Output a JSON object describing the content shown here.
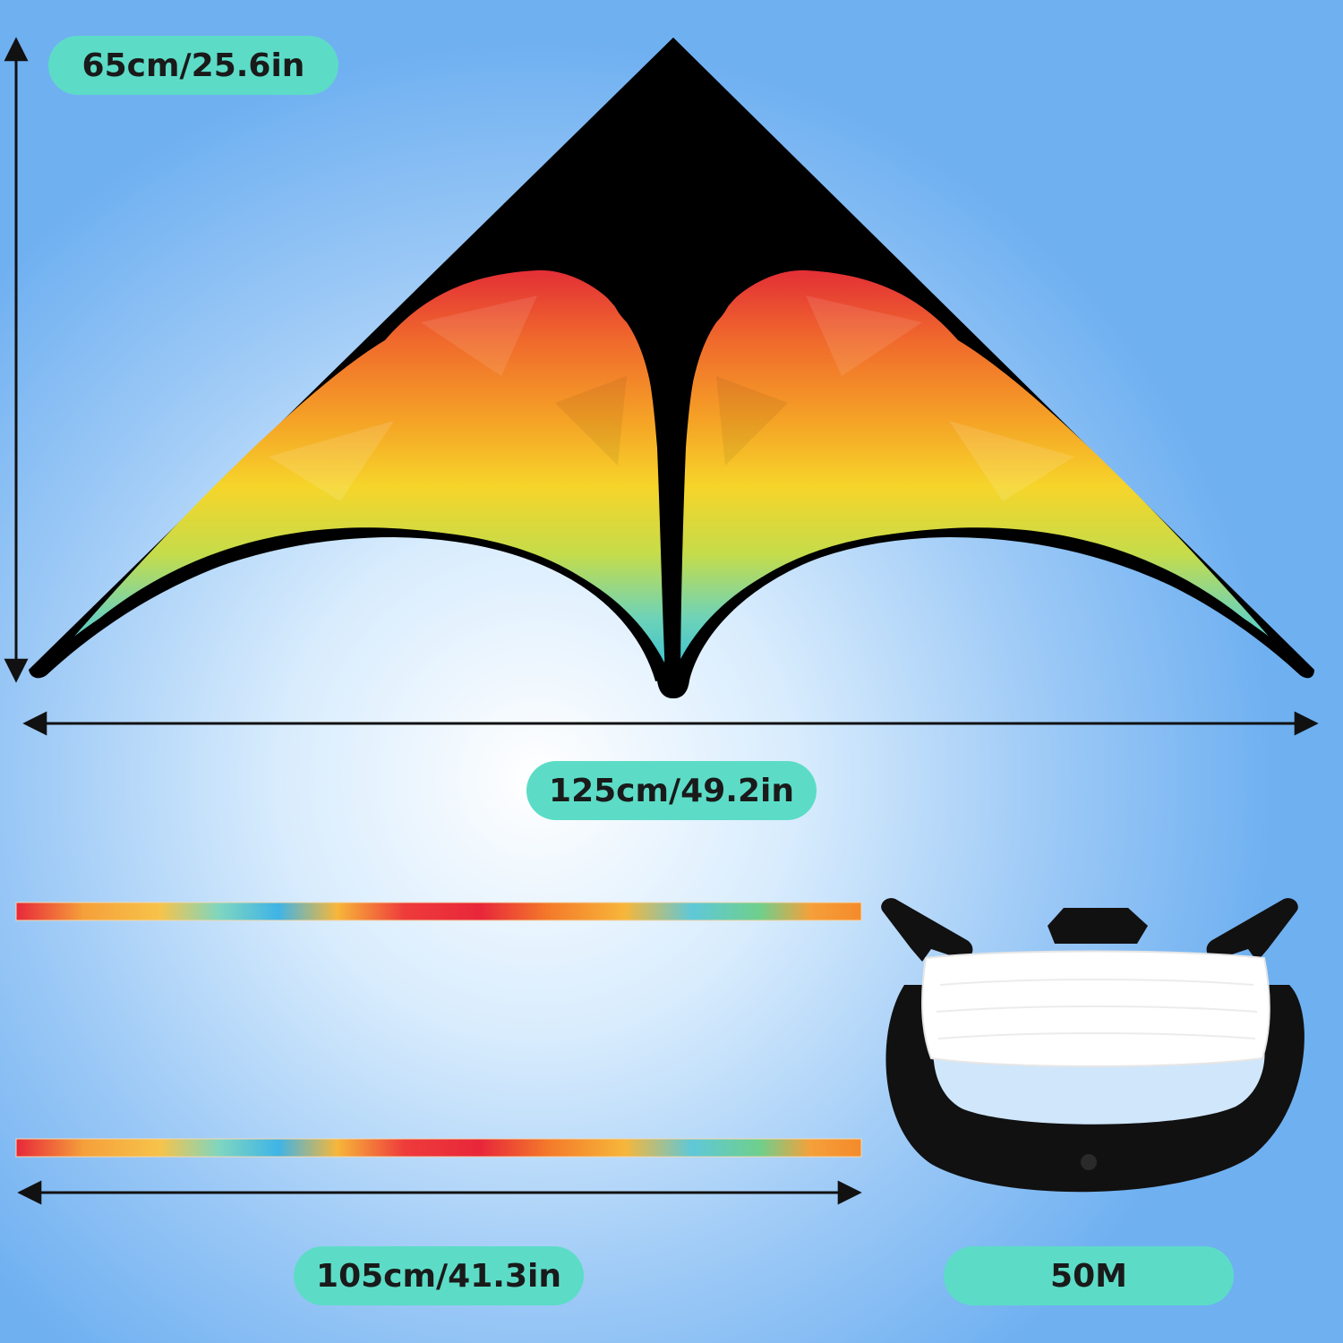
{
  "colors": {
    "label_background": "#5cdcc6",
    "label_text": "#1a1a1a",
    "kite_body": "#000000",
    "arrow": "#111111",
    "reel": "#111111",
    "line": "#ffffff",
    "palette": [
      "#e8373a",
      "#f07a2a",
      "#f5a623",
      "#f7d02a",
      "#c9dd4a",
      "#7fd6b0",
      "#4fc6e0"
    ]
  },
  "labels": {
    "kite_height": "65cm/25.6in",
    "kite_width": "125cm/49.2in",
    "tail_length": "105cm/41.3in",
    "line_length": "50M"
  },
  "icons": {
    "kite": "delta-kite-icon",
    "tail": "tail-ribbon-icon",
    "reel": "kite-reel-icon",
    "arrow": "double-arrow-icon"
  }
}
